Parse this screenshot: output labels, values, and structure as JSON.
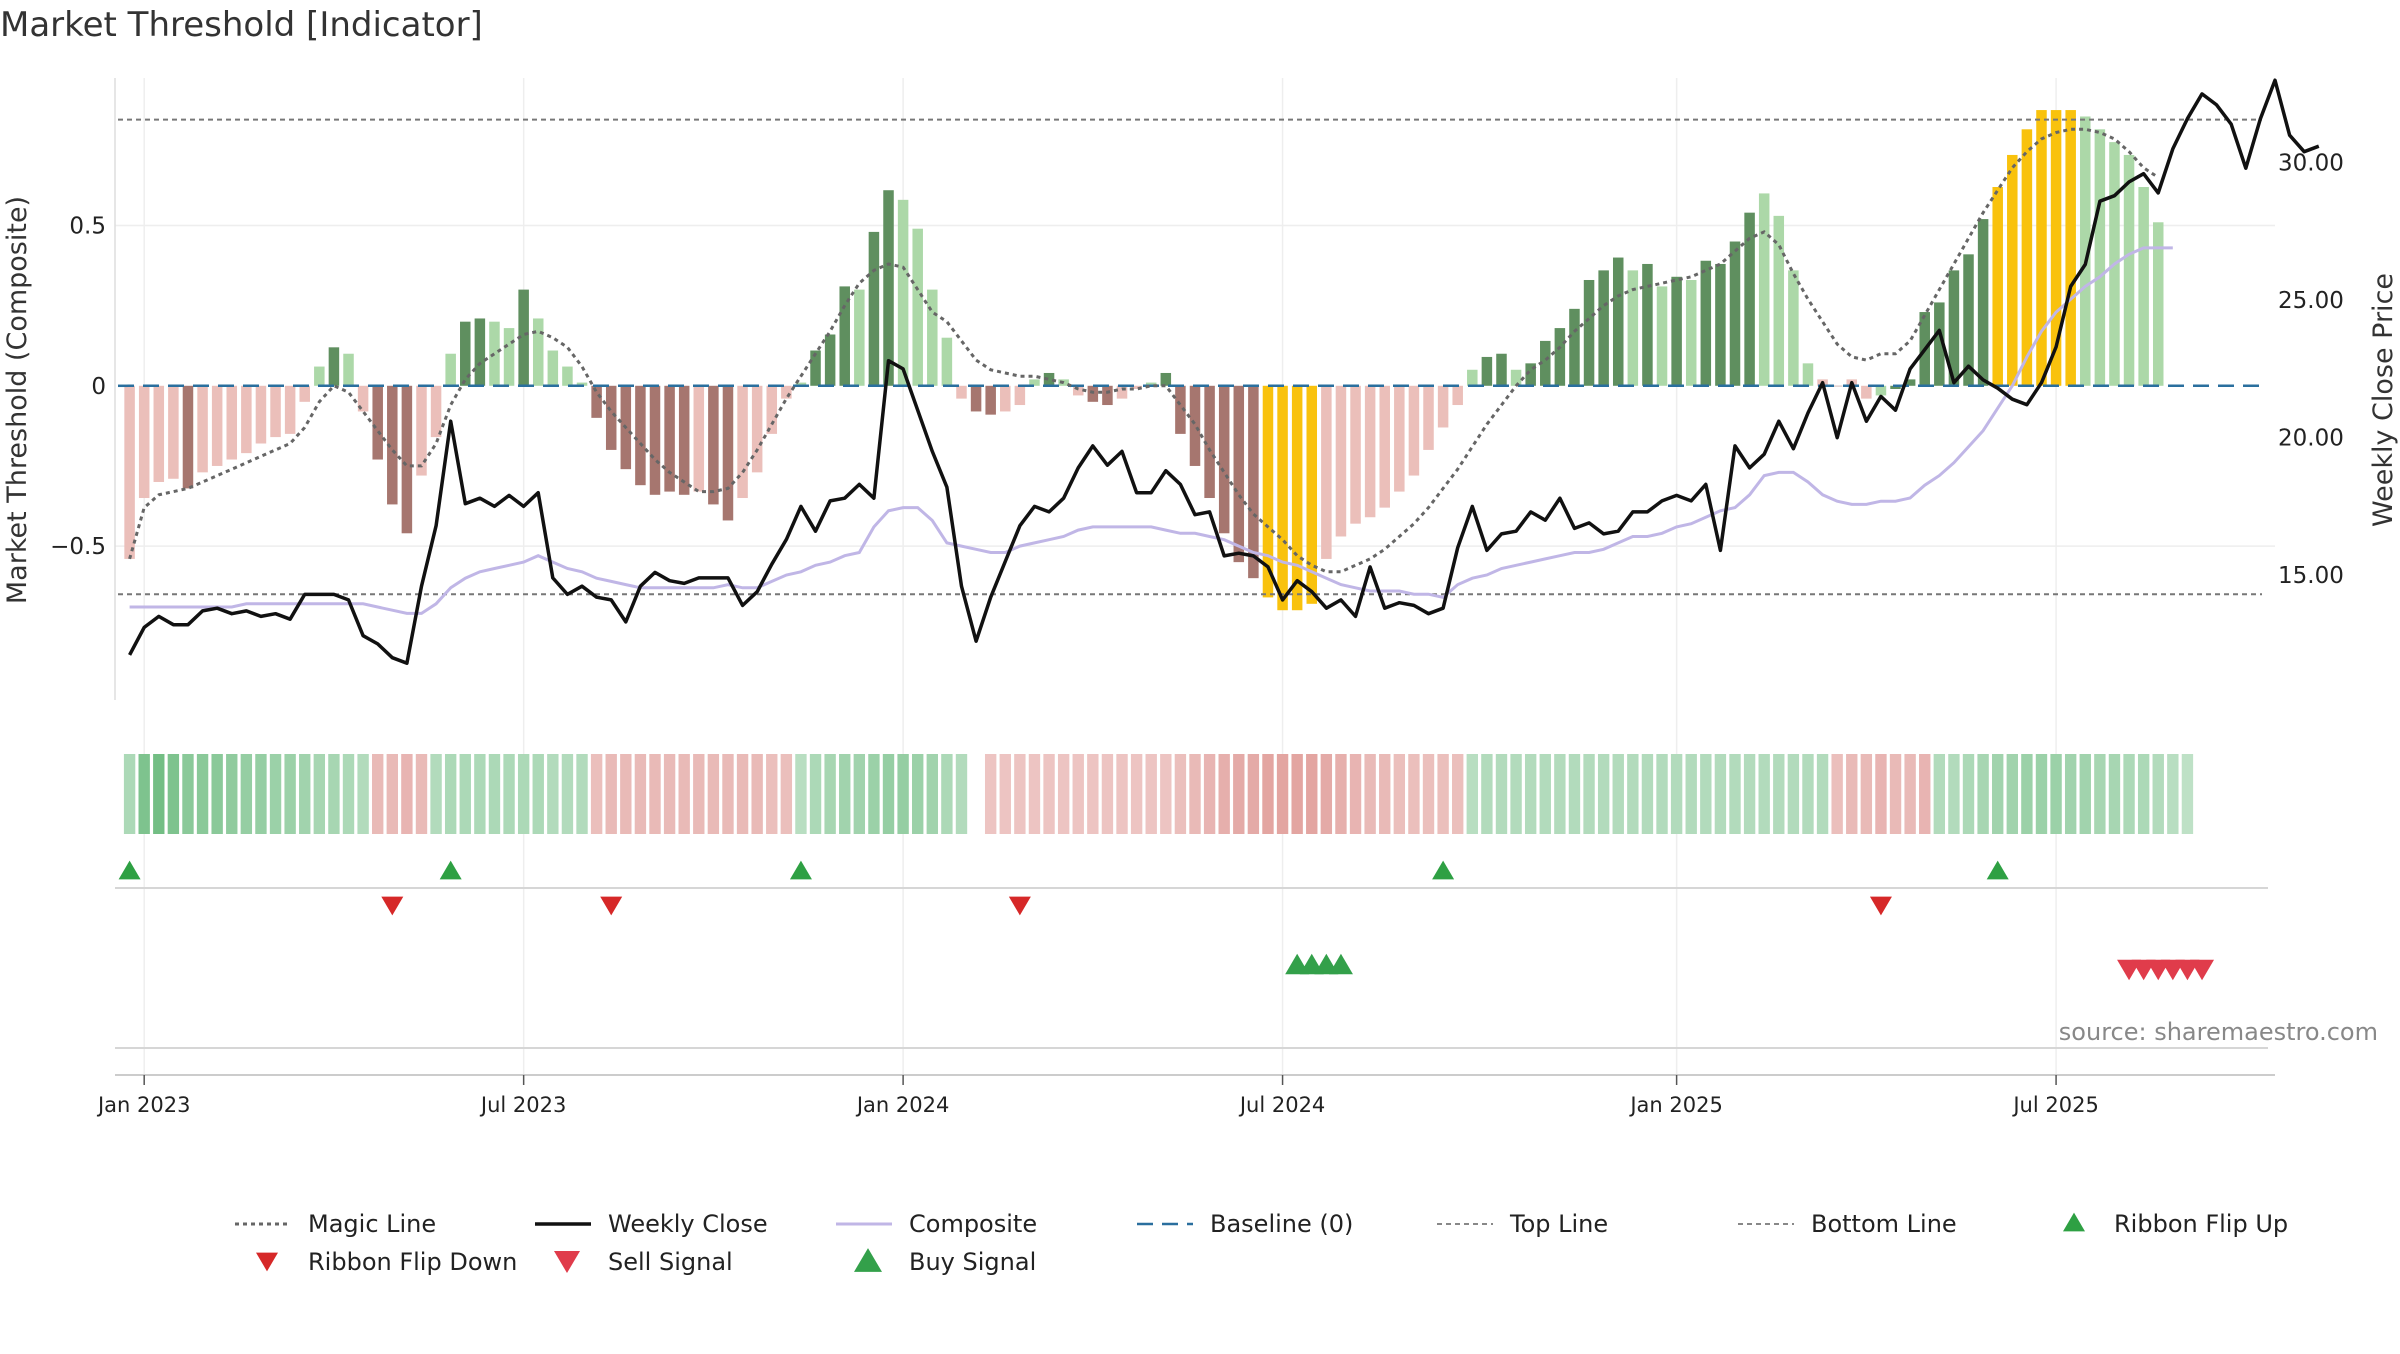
{
  "title": "Market Threshold [Indicator]",
  "source": "source: sharemaestro.com",
  "colors": {
    "green_dark": "#5f8f5f",
    "green_light": "#acd8a8",
    "red_dark": "#a6766f",
    "red_light": "#ebbfba",
    "gold": "#f9c20d",
    "close": "#111111",
    "composite": "#c0b6e6",
    "magic": "#666666",
    "baseline": "#2a6f9e",
    "ribbon_up": "#2ea043",
    "ribbon_down": "#d62828",
    "sell": "#e03c4b",
    "buy": "#33a04a"
  },
  "chart_data": {
    "type": "bar",
    "x_start": "2022-12-26",
    "x_step_days": 7,
    "xlim": [
      "2022-12-19",
      "2025-10-20"
    ],
    "ylim_left": [
      -0.98,
      0.96
    ],
    "ylim_right": [
      10.46,
      33.08
    ],
    "ylabel_left": "Market Threshold (Composite)",
    "ylabel_right": "Weekly Close Price",
    "left_ticks": [
      {
        "value": 0.5,
        "label": "0.5"
      },
      {
        "value": 0,
        "label": "0"
      },
      {
        "value": -0.5,
        "label": "−0.5"
      }
    ],
    "right_ticks": [
      {
        "value": 30,
        "label": "30.00"
      },
      {
        "value": 25,
        "label": "25.00"
      },
      {
        "value": 20,
        "label": "20.00"
      },
      {
        "value": 15,
        "label": "15.00"
      }
    ],
    "x_ticks": [
      {
        "date": "2023-01-02",
        "label": "Jan 2023"
      },
      {
        "date": "2023-07-03",
        "label": "Jul 2023"
      },
      {
        "date": "2024-01-01",
        "label": "Jan 2024"
      },
      {
        "date": "2024-07-01",
        "label": "Jul 2024"
      },
      {
        "date": "2025-01-06",
        "label": "Jan 2025"
      },
      {
        "date": "2025-07-07",
        "label": "Jul 2025"
      }
    ],
    "top_line": 0.83,
    "bottom_line": -0.65,
    "histogram": [
      -0.54,
      -0.35,
      -0.3,
      -0.29,
      -0.32,
      -0.27,
      -0.25,
      -0.23,
      -0.21,
      -0.18,
      -0.16,
      -0.15,
      -0.05,
      0.06,
      0.12,
      0.1,
      -0.08,
      -0.23,
      -0.37,
      -0.46,
      -0.28,
      -0.16,
      0.1,
      0.2,
      0.21,
      0.2,
      0.18,
      0.3,
      0.21,
      0.11,
      0.06,
      0.01,
      -0.1,
      -0.2,
      -0.26,
      -0.31,
      -0.34,
      -0.33,
      -0.34,
      -0.33,
      -0.37,
      -0.42,
      -0.35,
      -0.27,
      -0.15,
      -0.04,
      0.01,
      0.11,
      0.16,
      0.31,
      0.3,
      0.48,
      0.61,
      0.58,
      0.49,
      0.3,
      0.15,
      -0.04,
      -0.08,
      -0.09,
      -0.08,
      -0.06,
      0.02,
      0.04,
      0.02,
      -0.03,
      -0.05,
      -0.06,
      -0.04,
      -0.01,
      0.01,
      0.04,
      -0.15,
      -0.25,
      -0.35,
      -0.46,
      -0.55,
      -0.6,
      -0.66,
      -0.7,
      -0.7,
      -0.68,
      -0.54,
      -0.47,
      -0.43,
      -0.41,
      -0.38,
      -0.33,
      -0.28,
      -0.2,
      -0.13,
      -0.06,
      0.05,
      0.09,
      0.1,
      0.05,
      0.07,
      0.14,
      0.18,
      0.24,
      0.33,
      0.36,
      0.4,
      0.36,
      0.38,
      0.31,
      0.34,
      0.33,
      0.39,
      0.38,
      0.45,
      0.54,
      0.6,
      0.53,
      0.36,
      0.07,
      0.02,
      0,
      0.02,
      -0.04,
      -0.03,
      -0.01,
      0.02,
      0.23,
      0.26,
      0.36,
      0.41,
      0.52,
      0.62,
      0.72,
      0.8,
      0.86,
      0.86,
      0.86,
      0.84,
      0.8,
      0.76,
      0.72,
      0.62,
      0.51
    ],
    "hist_colors": [
      "rl",
      "rl",
      "rl",
      "rl",
      "rd",
      "rl",
      "rl",
      "rl",
      "rl",
      "rl",
      "rl",
      "rl",
      "rl",
      "gl",
      "gd",
      "gl",
      "rl",
      "rd",
      "rd",
      "rd",
      "rl",
      "rl",
      "gl",
      "gd",
      "gd",
      "gl",
      "gl",
      "gd",
      "gl",
      "gl",
      "gl",
      "gl",
      "rd",
      "rd",
      "rd",
      "rd",
      "rd",
      "rd",
      "rd",
      "rl",
      "rd",
      "rd",
      "rl",
      "rl",
      "rl",
      "rl",
      "gl",
      "gd",
      "gd",
      "gd",
      "gl",
      "gd",
      "gd",
      "gl",
      "gl",
      "gl",
      "gl",
      "rl",
      "rd",
      "rd",
      "rl",
      "rl",
      "gl",
      "gd",
      "gl",
      "rl",
      "rd",
      "rd",
      "rl",
      "rl",
      "gl",
      "gd",
      "rd",
      "rd",
      "rd",
      "rd",
      "rd",
      "rd",
      "au",
      "au",
      "au",
      "au",
      "rl",
      "rl",
      "rl",
      "rl",
      "rl",
      "rl",
      "rl",
      "rl",
      "rl",
      "rl",
      "gl",
      "gd",
      "gd",
      "gl",
      "gd",
      "gd",
      "gd",
      "gd",
      "gd",
      "gd",
      "gd",
      "gl",
      "gd",
      "gl",
      "gd",
      "gl",
      "gd",
      "gd",
      "gd",
      "gd",
      "gl",
      "gl",
      "gl",
      "gl",
      "rl",
      "rd",
      "rl",
      "rl",
      "gl",
      "gd",
      "gd",
      "gd",
      "gd",
      "gd",
      "gd",
      "gd",
      "au",
      "au",
      "au",
      "au",
      "au",
      "au",
      "gl",
      "gl",
      "gl",
      "gl",
      "gl",
      "gl"
    ],
    "magic_line": [
      -0.54,
      -0.38,
      -0.34,
      -0.33,
      -0.32,
      -0.3,
      -0.28,
      -0.26,
      -0.24,
      -0.22,
      -0.2,
      -0.18,
      -0.13,
      -0.05,
      0,
      -0.02,
      -0.08,
      -0.14,
      -0.2,
      -0.25,
      -0.25,
      -0.18,
      -0.06,
      0.02,
      0.07,
      0.1,
      0.13,
      0.16,
      0.17,
      0.15,
      0.12,
      0.06,
      -0.02,
      -0.08,
      -0.13,
      -0.18,
      -0.23,
      -0.27,
      -0.3,
      -0.33,
      -0.33,
      -0.32,
      -0.27,
      -0.2,
      -0.12,
      -0.04,
      0.03,
      0.1,
      0.17,
      0.25,
      0.32,
      0.36,
      0.38,
      0.37,
      0.3,
      0.23,
      0.2,
      0.14,
      0.08,
      0.05,
      0.04,
      0.03,
      0.03,
      0.02,
      0.01,
      -0.01,
      -0.02,
      -0.02,
      -0.01,
      -0.01,
      0,
      0,
      -0.06,
      -0.12,
      -0.2,
      -0.27,
      -0.34,
      -0.4,
      -0.44,
      -0.48,
      -0.53,
      -0.56,
      -0.58,
      -0.58,
      -0.56,
      -0.54,
      -0.51,
      -0.47,
      -0.43,
      -0.38,
      -0.32,
      -0.26,
      -0.19,
      -0.12,
      -0.06,
      0,
      0.05,
      0.08,
      0.12,
      0.17,
      0.21,
      0.25,
      0.28,
      0.3,
      0.31,
      0.32,
      0.33,
      0.34,
      0.36,
      0.38,
      0.42,
      0.46,
      0.48,
      0.44,
      0.35,
      0.27,
      0.2,
      0.13,
      0.09,
      0.08,
      0.1,
      0.1,
      0.14,
      0.22,
      0.3,
      0.38,
      0.46,
      0.54,
      0.61,
      0.68,
      0.73,
      0.77,
      0.79,
      0.8,
      0.8,
      0.79,
      0.77,
      0.73,
      0.68,
      0.65
    ],
    "composite": [
      -0.69,
      -0.69,
      -0.69,
      -0.69,
      -0.69,
      -0.69,
      -0.69,
      -0.69,
      -0.68,
      -0.68,
      -0.68,
      -0.68,
      -0.68,
      -0.68,
      -0.68,
      -0.68,
      -0.68,
      -0.69,
      -0.7,
      -0.71,
      -0.71,
      -0.68,
      -0.63,
      -0.6,
      -0.58,
      -0.57,
      -0.56,
      -0.55,
      -0.53,
      -0.55,
      -0.57,
      -0.58,
      -0.6,
      -0.61,
      -0.62,
      -0.63,
      -0.63,
      -0.63,
      -0.63,
      -0.63,
      -0.63,
      -0.62,
      -0.63,
      -0.63,
      -0.61,
      -0.59,
      -0.58,
      -0.56,
      -0.55,
      -0.53,
      -0.52,
      -0.44,
      -0.39,
      -0.38,
      -0.38,
      -0.42,
      -0.49,
      -0.5,
      -0.51,
      -0.52,
      -0.52,
      -0.5,
      -0.49,
      -0.48,
      -0.47,
      -0.45,
      -0.44,
      -0.44,
      -0.44,
      -0.44,
      -0.44,
      -0.45,
      -0.46,
      -0.46,
      -0.47,
      -0.48,
      -0.5,
      -0.52,
      -0.53,
      -0.55,
      -0.56,
      -0.58,
      -0.6,
      -0.62,
      -0.63,
      -0.64,
      -0.64,
      -0.64,
      -0.65,
      -0.65,
      -0.66,
      -0.62,
      -0.6,
      -0.59,
      -0.57,
      -0.56,
      -0.55,
      -0.54,
      -0.53,
      -0.52,
      -0.52,
      -0.51,
      -0.49,
      -0.47,
      -0.47,
      -0.46,
      -0.44,
      -0.43,
      -0.41,
      -0.39,
      -0.38,
      -0.34,
      -0.28,
      -0.27,
      -0.27,
      -0.3,
      -0.34,
      -0.36,
      -0.37,
      -0.37,
      -0.36,
      -0.36,
      -0.35,
      -0.31,
      -0.28,
      -0.24,
      -0.19,
      -0.14,
      -0.07,
      0,
      0.09,
      0.17,
      0.23,
      0.27,
      0.31,
      0.34,
      0.38,
      0.41,
      0.43,
      0.43,
      0.43
    ],
    "weekly_close": [
      12.1,
      13.1,
      13.5,
      13.2,
      13.2,
      13.7,
      13.8,
      13.6,
      13.7,
      13.5,
      13.6,
      13.4,
      14.3,
      14.3,
      14.3,
      14.1,
      12.8,
      12.5,
      12.0,
      11.8,
      14.6,
      16.8,
      20.6,
      17.6,
      17.8,
      17.5,
      17.9,
      17.5,
      18.0,
      14.9,
      14.3,
      14.6,
      14.2,
      14.1,
      13.3,
      14.6,
      15.1,
      14.8,
      14.7,
      14.9,
      14.9,
      14.9,
      13.9,
      14.4,
      15.4,
      16.3,
      17.5,
      16.6,
      17.7,
      17.8,
      18.3,
      17.8,
      22.8,
      22.5,
      21.0,
      19.5,
      18.2,
      14.6,
      12.6,
      14.2,
      15.5,
      16.8,
      17.5,
      17.3,
      17.8,
      18.9,
      19.7,
      19.0,
      19.5,
      18.0,
      18.0,
      18.8,
      18.3,
      17.2,
      17.3,
      15.7,
      15.8,
      15.7,
      15.3,
      14.1,
      14.8,
      14.4,
      13.8,
      14.1,
      13.5,
      15.3,
      13.8,
      14.0,
      13.9,
      13.6,
      13.8,
      16.0,
      17.5,
      15.9,
      16.5,
      16.6,
      17.3,
      17.0,
      17.8,
      16.7,
      16.9,
      16.5,
      16.6,
      17.3,
      17.3,
      17.7,
      17.9,
      17.7,
      18.3,
      15.9,
      19.7,
      18.9,
      19.4,
      20.6,
      19.6,
      20.9,
      22.0,
      20.0,
      22.0,
      20.6,
      21.5,
      21.0,
      22.5,
      23.2,
      23.9,
      22.0,
      22.6,
      22.1,
      21.8,
      21.4,
      21.2,
      22.0,
      23.3,
      25.5,
      26.3,
      28.6,
      28.8,
      29.3,
      29.6,
      28.9,
      30.5,
      31.6,
      32.5,
      32.1,
      31.4,
      29.8,
      31.6,
      33.0,
      31.0,
      30.4,
      30.6
    ],
    "ribbon": [
      0.5,
      0.9,
      1,
      0.9,
      0.8,
      0.8,
      0.8,
      0.75,
      0.7,
      0.7,
      0.65,
      0.65,
      0.6,
      0.55,
      0.55,
      0.5,
      0.45,
      -0.45,
      -0.45,
      -0.5,
      -0.45,
      0.45,
      0.5,
      0.5,
      0.5,
      0.5,
      0.5,
      0.5,
      0.5,
      0.45,
      0.45,
      0.45,
      -0.4,
      -0.45,
      -0.45,
      -0.45,
      -0.45,
      -0.45,
      -0.45,
      -0.45,
      -0.45,
      -0.45,
      -0.45,
      -0.45,
      -0.4,
      -0.4,
      0.4,
      0.5,
      0.55,
      0.6,
      0.6,
      0.65,
      0.7,
      0.7,
      0.65,
      0.6,
      0.5,
      0.45,
      -0.35,
      -0.35,
      -0.35,
      -0.35,
      -0.35,
      -0.35,
      -0.35,
      -0.35,
      -0.35,
      -0.35,
      -0.35,
      -0.35,
      -0.35,
      -0.35,
      -0.4,
      -0.45,
      -0.5,
      -0.55,
      -0.6,
      -0.6,
      -0.65,
      -0.65,
      -0.65,
      -0.65,
      -0.6,
      -0.55,
      -0.5,
      -0.45,
      -0.45,
      -0.4,
      -0.4,
      -0.4,
      -0.4,
      -0.4,
      0.4,
      0.45,
      0.45,
      0.45,
      0.45,
      0.45,
      0.45,
      0.45,
      0.45,
      0.45,
      0.45,
      0.45,
      0.45,
      0.45,
      0.45,
      0.45,
      0.45,
      0.45,
      0.45,
      0.45,
      0.45,
      0.45,
      0.45,
      0.45,
      0.45,
      -0.4,
      -0.45,
      -0.45,
      -0.5,
      -0.45,
      -0.45,
      -0.5,
      0.45,
      0.45,
      0.5,
      0.55,
      0.6,
      0.6,
      0.65,
      0.65,
      0.65,
      0.6,
      0.6,
      0.55,
      0.55,
      0.5,
      0.5,
      0.45,
      0.4,
      0.35
    ],
    "ribbon_gap": [
      58
    ],
    "ribbon_flip_up": [
      0,
      22,
      46,
      90,
      128
    ],
    "ribbon_flip_down": [
      18,
      33,
      61,
      120
    ],
    "buy_signals": [
      80,
      81,
      82,
      83
    ],
    "sell_signals": [
      137,
      138,
      139,
      140,
      141,
      142
    ],
    "legend": [
      {
        "key": "magic",
        "label": "Magic Line"
      },
      {
        "key": "close",
        "label": "Weekly Close"
      },
      {
        "key": "composite",
        "label": "Composite"
      },
      {
        "key": "baseline",
        "label": "Baseline (0)"
      },
      {
        "key": "top",
        "label": "Top Line"
      },
      {
        "key": "bottom",
        "label": "Bottom Line"
      },
      {
        "key": "flip_up",
        "label": "Ribbon Flip Up"
      },
      {
        "key": "flip_down",
        "label": "Ribbon Flip Down"
      },
      {
        "key": "sell",
        "label": "Sell Signal"
      },
      {
        "key": "buy",
        "label": "Buy Signal"
      }
    ]
  }
}
